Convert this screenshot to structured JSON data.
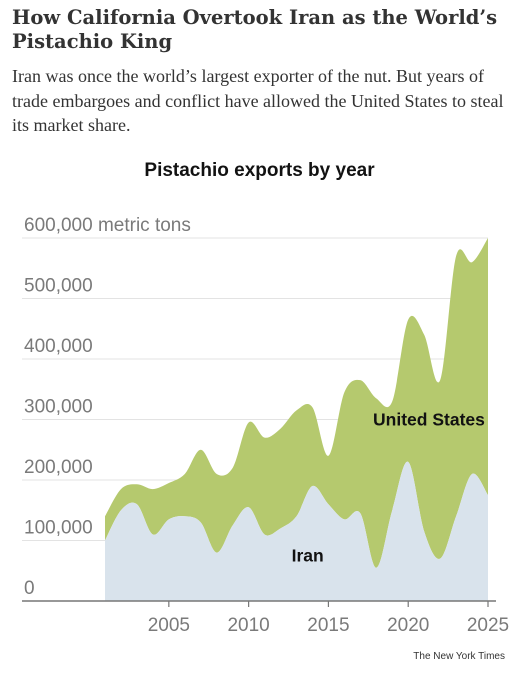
{
  "headline": "How California Overtook Iran as the World’s Pistachio King",
  "dek": "Iran was once the world’s largest exporter of the nut. But years of trade embargoes and conflict have allowed the United States to steal its market share.",
  "credit": "The New York Times",
  "colors": {
    "us": "#b5c96e",
    "iran": "#d9e3ec",
    "grid": "#e3e3e3",
    "axis": "#777777",
    "tick_text": "#7a7a7a"
  },
  "chart_data": {
    "type": "area",
    "stacked": true,
    "title": "Pistachio exports by year",
    "ylabel": "metric tons",
    "ylim": [
      0,
      600000
    ],
    "xlim": [
      2001,
      2025
    ],
    "grid": true,
    "y_ticks": [
      {
        "value": 0,
        "label": "0"
      },
      {
        "value": 100000,
        "label": "100,000"
      },
      {
        "value": 200000,
        "label": "200,000"
      },
      {
        "value": 300000,
        "label": "300,000"
      },
      {
        "value": 400000,
        "label": "400,000"
      },
      {
        "value": 500000,
        "label": "500,000"
      },
      {
        "value": 600000,
        "label": "600,000 metric tons"
      }
    ],
    "x_ticks": [
      {
        "value": 2005,
        "label": "2005"
      },
      {
        "value": 2010,
        "label": "2010"
      },
      {
        "value": 2015,
        "label": "2015"
      },
      {
        "value": 2020,
        "label": "2020"
      },
      {
        "value": 2025,
        "label": "2025"
      }
    ],
    "x": [
      2001,
      2002,
      2003,
      2004,
      2005,
      2006,
      2007,
      2008,
      2009,
      2010,
      2011,
      2012,
      2013,
      2014,
      2015,
      2016,
      2017,
      2018,
      2019,
      2020,
      2021,
      2022,
      2023,
      2024,
      2025
    ],
    "series": [
      {
        "name": "Iran",
        "values": [
          100000,
          150000,
          160000,
          110000,
          135000,
          140000,
          130000,
          80000,
          125000,
          155000,
          110000,
          120000,
          140000,
          190000,
          160000,
          135000,
          145000,
          55000,
          150000,
          230000,
          115000,
          70000,
          140000,
          210000,
          175000
        ]
      },
      {
        "name": "United States",
        "values": [
          40000,
          35000,
          33000,
          75000,
          60000,
          70000,
          120000,
          130000,
          95000,
          140000,
          160000,
          165000,
          175000,
          130000,
          80000,
          210000,
          220000,
          280000,
          180000,
          235000,
          325000,
          295000,
          430000,
          350000,
          425000
        ]
      }
    ],
    "annotations": [
      {
        "text": "United States",
        "x": 2021.3,
        "y": 290000
      },
      {
        "text": "Iran",
        "x": 2013.7,
        "y": 65000
      }
    ]
  }
}
